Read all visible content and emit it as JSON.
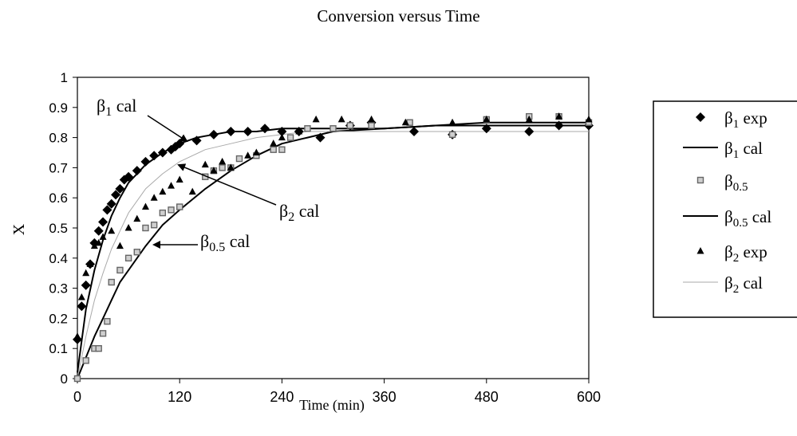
{
  "chart_data": {
    "type": "scatter",
    "title": "Conversion versus Time",
    "xlabel": "Time (min)",
    "ylabel": "X",
    "xlim": [
      0,
      600
    ],
    "ylim": [
      0,
      1
    ],
    "x_ticks": [
      "0",
      "120",
      "240",
      "360",
      "480",
      "600"
    ],
    "y_ticks": [
      "0",
      "0.1",
      "0.2",
      "0.3",
      "0.4",
      "0.5",
      "0.6",
      "0.7",
      "0.8",
      "0.9",
      "1"
    ],
    "grid": false,
    "legend_position": "right",
    "series": [
      {
        "name": "β1 exp",
        "kind": "markers",
        "marker": "diamond",
        "color": "#000000",
        "x": [
          0,
          5,
          10,
          15,
          20,
          25,
          30,
          35,
          40,
          45,
          50,
          55,
          60,
          70,
          80,
          90,
          100,
          110,
          115,
          120,
          140,
          160,
          180,
          200,
          220,
          240,
          260,
          285,
          320,
          345,
          395,
          440,
          480,
          530,
          565,
          600
        ],
        "y": [
          0.13,
          0.24,
          0.31,
          0.38,
          0.45,
          0.49,
          0.52,
          0.56,
          0.58,
          0.61,
          0.63,
          0.66,
          0.67,
          0.69,
          0.72,
          0.74,
          0.75,
          0.76,
          0.77,
          0.78,
          0.79,
          0.81,
          0.82,
          0.82,
          0.83,
          0.82,
          0.82,
          0.8,
          0.84,
          0.85,
          0.82,
          0.81,
          0.83,
          0.82,
          0.84,
          0.84
        ]
      },
      {
        "name": "β1 cal",
        "kind": "line",
        "color": "#000000",
        "width": 2,
        "x": [
          0,
          10,
          20,
          30,
          40,
          50,
          60,
          80,
          100,
          120,
          140,
          160,
          180,
          210,
          240,
          300,
          360,
          420,
          480,
          540,
          600
        ],
        "y": [
          0.02,
          0.23,
          0.36,
          0.46,
          0.54,
          0.6,
          0.65,
          0.71,
          0.75,
          0.78,
          0.8,
          0.81,
          0.82,
          0.82,
          0.83,
          0.83,
          0.83,
          0.84,
          0.84,
          0.84,
          0.84
        ]
      },
      {
        "name": "β0.5",
        "kind": "markers",
        "marker": "square",
        "color": "#666666",
        "x": [
          0,
          10,
          20,
          25,
          30,
          35,
          40,
          50,
          60,
          70,
          80,
          90,
          100,
          110,
          120,
          150,
          160,
          170,
          180,
          190,
          210,
          230,
          240,
          250,
          270,
          300,
          320,
          345,
          390,
          440,
          480,
          530,
          565,
          600
        ],
        "y": [
          0.0,
          0.06,
          0.1,
          0.1,
          0.15,
          0.19,
          0.32,
          0.36,
          0.4,
          0.42,
          0.5,
          0.51,
          0.55,
          0.56,
          0.57,
          0.67,
          0.69,
          0.7,
          0.7,
          0.73,
          0.74,
          0.76,
          0.76,
          0.8,
          0.83,
          0.83,
          0.84,
          0.84,
          0.85,
          0.81,
          0.86,
          0.87,
          0.87,
          0.85
        ]
      },
      {
        "name": "β0.5 cal",
        "kind": "line",
        "color": "#000000",
        "width": 2,
        "x": [
          0,
          10,
          20,
          30,
          40,
          50,
          60,
          80,
          100,
          120,
          150,
          180,
          210,
          240,
          270,
          300,
          360,
          420,
          480,
          540,
          600
        ],
        "y": [
          0.0,
          0.07,
          0.14,
          0.2,
          0.26,
          0.32,
          0.36,
          0.44,
          0.51,
          0.56,
          0.63,
          0.69,
          0.74,
          0.78,
          0.8,
          0.82,
          0.83,
          0.84,
          0.85,
          0.85,
          0.85
        ]
      },
      {
        "name": "β2 exp",
        "kind": "markers",
        "marker": "triangle",
        "color": "#000000",
        "x": [
          0,
          5,
          10,
          15,
          20,
          25,
          30,
          40,
          50,
          60,
          70,
          80,
          90,
          100,
          110,
          120,
          135,
          150,
          160,
          170,
          180,
          200,
          210,
          230,
          240,
          260,
          280,
          310,
          345,
          385,
          440,
          480,
          530,
          565,
          600
        ],
        "y": [
          0.14,
          0.27,
          0.35,
          0.38,
          0.44,
          0.45,
          0.47,
          0.49,
          0.44,
          0.5,
          0.53,
          0.57,
          0.6,
          0.62,
          0.64,
          0.66,
          0.62,
          0.71,
          0.69,
          0.72,
          0.7,
          0.74,
          0.75,
          0.78,
          0.8,
          0.82,
          0.86,
          0.86,
          0.86,
          0.85,
          0.85,
          0.86,
          0.86,
          0.87,
          0.86
        ]
      },
      {
        "name": "β2 cal",
        "kind": "line",
        "color": "#aaaaaa",
        "width": 1,
        "x": [
          0,
          10,
          20,
          30,
          40,
          50,
          60,
          80,
          100,
          120,
          150,
          180,
          210,
          240,
          270,
          300,
          360,
          420,
          480,
          540,
          600
        ],
        "y": [
          0.0,
          0.14,
          0.26,
          0.35,
          0.43,
          0.49,
          0.55,
          0.63,
          0.68,
          0.72,
          0.76,
          0.78,
          0.8,
          0.81,
          0.82,
          0.82,
          0.82,
          0.82,
          0.82,
          0.82,
          0.82
        ]
      }
    ],
    "annotations": [
      {
        "base": "β",
        "sub": "1",
        "suffix": " cal"
      },
      {
        "base": "β",
        "sub": "2",
        "suffix": " cal"
      },
      {
        "base": "β",
        "sub": "0.5",
        "suffix": " cal"
      }
    ],
    "legend_items": [
      {
        "base": "β",
        "sub": "1",
        "suffix": " exp"
      },
      {
        "base": "β",
        "sub": "1",
        "suffix": " cal"
      },
      {
        "base": "β",
        "sub": "0.5",
        "suffix": ""
      },
      {
        "base": "β",
        "sub": "0.5",
        "suffix": " cal"
      },
      {
        "base": "β",
        "sub": "2",
        "suffix": " exp"
      },
      {
        "base": "β",
        "sub": "2",
        "suffix": " cal"
      }
    ]
  }
}
